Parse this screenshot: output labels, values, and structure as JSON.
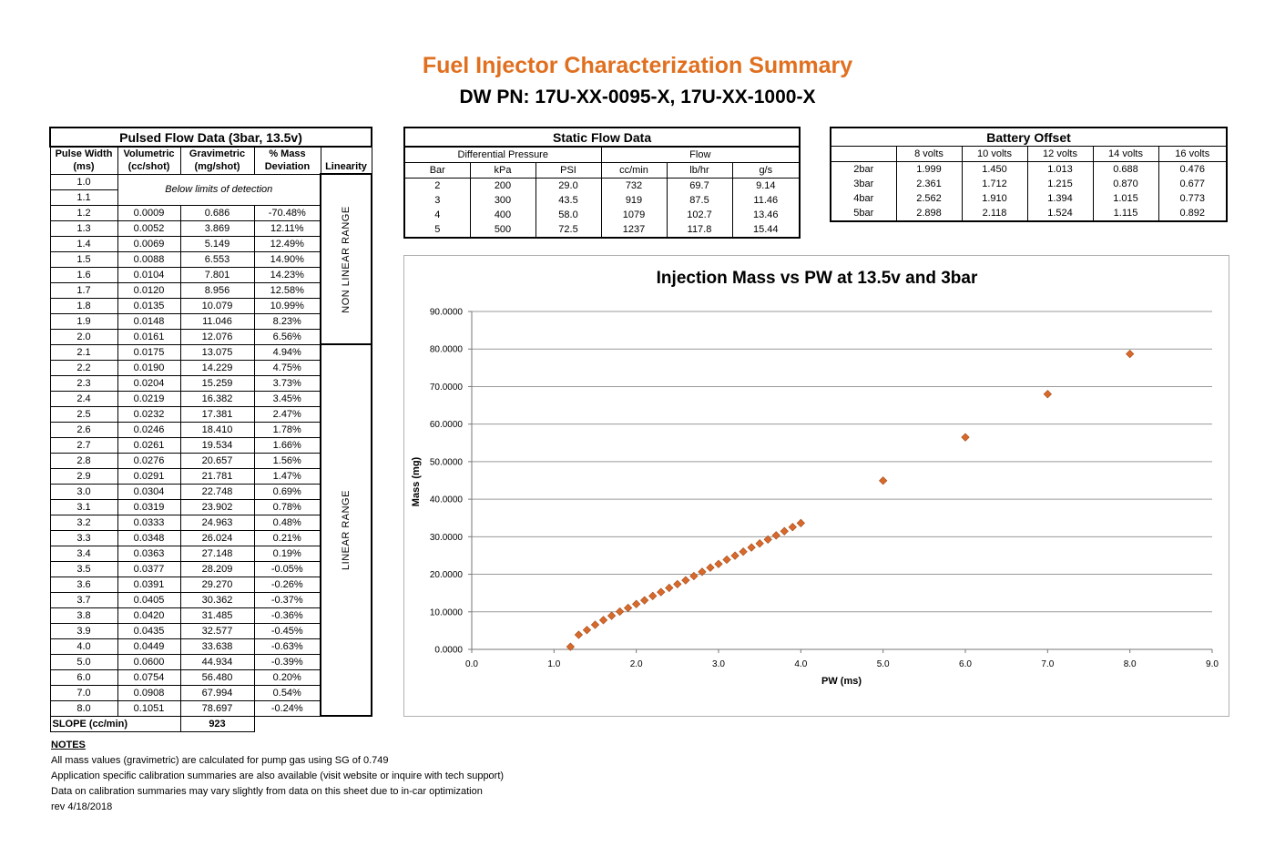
{
  "title": "Fuel Injector Characterization Summary",
  "subtitle": "DW PN: 17U-XX-0095-X, 17U-XX-1000-X",
  "pulsed": {
    "title": "Pulsed Flow Data (3bar, 13.5v)",
    "headers_top": [
      "Pulse Width",
      "Volumetric",
      "Gravimetric",
      "% Mass",
      ""
    ],
    "headers_bottom": [
      "(ms)",
      "(cc/shot)",
      "(mg/shot)",
      "Deviation",
      "Linearity"
    ],
    "below_limits": "Below limits of detection",
    "non_linear_label": "NON LINEAR RANGE",
    "linear_label": "LINEAR RANGE",
    "rows": [
      [
        "1.0",
        "",
        "",
        ""
      ],
      [
        "1.1",
        "",
        "",
        ""
      ],
      [
        "1.2",
        "0.0009",
        "0.686",
        "-70.48%"
      ],
      [
        "1.3",
        "0.0052",
        "3.869",
        "12.11%"
      ],
      [
        "1.4",
        "0.0069",
        "5.149",
        "12.49%"
      ],
      [
        "1.5",
        "0.0088",
        "6.553",
        "14.90%"
      ],
      [
        "1.6",
        "0.0104",
        "7.801",
        "14.23%"
      ],
      [
        "1.7",
        "0.0120",
        "8.956",
        "12.58%"
      ],
      [
        "1.8",
        "0.0135",
        "10.079",
        "10.99%"
      ],
      [
        "1.9",
        "0.0148",
        "11.046",
        "8.23%"
      ],
      [
        "2.0",
        "0.0161",
        "12.076",
        "6.56%"
      ],
      [
        "2.1",
        "0.0175",
        "13.075",
        "4.94%"
      ],
      [
        "2.2",
        "0.0190",
        "14.229",
        "4.75%"
      ],
      [
        "2.3",
        "0.0204",
        "15.259",
        "3.73%"
      ],
      [
        "2.4",
        "0.0219",
        "16.382",
        "3.45%"
      ],
      [
        "2.5",
        "0.0232",
        "17.381",
        "2.47%"
      ],
      [
        "2.6",
        "0.0246",
        "18.410",
        "1.78%"
      ],
      [
        "2.7",
        "0.0261",
        "19.534",
        "1.66%"
      ],
      [
        "2.8",
        "0.0276",
        "20.657",
        "1.56%"
      ],
      [
        "2.9",
        "0.0291",
        "21.781",
        "1.47%"
      ],
      [
        "3.0",
        "0.0304",
        "22.748",
        "0.69%"
      ],
      [
        "3.1",
        "0.0319",
        "23.902",
        "0.78%"
      ],
      [
        "3.2",
        "0.0333",
        "24.963",
        "0.48%"
      ],
      [
        "3.3",
        "0.0348",
        "26.024",
        "0.21%"
      ],
      [
        "3.4",
        "0.0363",
        "27.148",
        "0.19%"
      ],
      [
        "3.5",
        "0.0377",
        "28.209",
        "-0.05%"
      ],
      [
        "3.6",
        "0.0391",
        "29.270",
        "-0.26%"
      ],
      [
        "3.7",
        "0.0405",
        "30.362",
        "-0.37%"
      ],
      [
        "3.8",
        "0.0420",
        "31.485",
        "-0.36%"
      ],
      [
        "3.9",
        "0.0435",
        "32.577",
        "-0.45%"
      ],
      [
        "4.0",
        "0.0449",
        "33.638",
        "-0.63%"
      ],
      [
        "5.0",
        "0.0600",
        "44.934",
        "-0.39%"
      ],
      [
        "6.0",
        "0.0754",
        "56.480",
        "0.20%"
      ],
      [
        "7.0",
        "0.0908",
        "67.994",
        "0.54%"
      ],
      [
        "8.0",
        "0.1051",
        "78.697",
        "-0.24%"
      ]
    ],
    "slope_label": "SLOPE (cc/min)",
    "slope_value": "923"
  },
  "static": {
    "title": "Static Flow Data",
    "group_pressure": "Differential Pressure",
    "group_flow": "Flow",
    "headers": [
      "Bar",
      "kPa",
      "PSI",
      "cc/min",
      "lb/hr",
      "g/s"
    ],
    "rows": [
      [
        "2",
        "200",
        "29.0",
        "732",
        "69.7",
        "9.14"
      ],
      [
        "3",
        "300",
        "43.5",
        "919",
        "87.5",
        "11.46"
      ],
      [
        "4",
        "400",
        "58.0",
        "1079",
        "102.7",
        "13.46"
      ],
      [
        "5",
        "500",
        "72.5",
        "1237",
        "117.8",
        "15.44"
      ]
    ]
  },
  "battery": {
    "title": "Battery Offset",
    "headers": [
      "",
      "8 volts",
      "10 volts",
      "12 volts",
      "14 volts",
      "16 volts"
    ],
    "rows": [
      [
        "2bar",
        "1.999",
        "1.450",
        "1.013",
        "0.688",
        "0.476"
      ],
      [
        "3bar",
        "2.361",
        "1.712",
        "1.215",
        "0.870",
        "0.677"
      ],
      [
        "4bar",
        "2.562",
        "1.910",
        "1.394",
        "1.015",
        "0.773"
      ],
      [
        "5bar",
        "2.898",
        "2.118",
        "1.524",
        "1.115",
        "0.892"
      ]
    ]
  },
  "chart_data": {
    "type": "scatter",
    "title": "Injection Mass vs PW at 13.5v and 3bar",
    "xlabel": "PW (ms)",
    "ylabel": "Mass (mg)",
    "xlim": [
      0,
      9
    ],
    "ylim": [
      0,
      90
    ],
    "x_ticks": [
      "0.0",
      "1.0",
      "2.0",
      "3.0",
      "4.0",
      "5.0",
      "6.0",
      "7.0",
      "8.0",
      "9.0"
    ],
    "y_ticks": [
      "0.0000",
      "10.0000",
      "20.0000",
      "30.0000",
      "40.0000",
      "50.0000",
      "60.0000",
      "70.0000",
      "80.0000",
      "90.0000"
    ],
    "grid": "horizontal",
    "marker_color": "#d9692b",
    "x": [
      1.2,
      1.3,
      1.4,
      1.5,
      1.6,
      1.7,
      1.8,
      1.9,
      2.0,
      2.1,
      2.2,
      2.3,
      2.4,
      2.5,
      2.6,
      2.7,
      2.8,
      2.9,
      3.0,
      3.1,
      3.2,
      3.3,
      3.4,
      3.5,
      3.6,
      3.7,
      3.8,
      3.9,
      4.0,
      5.0,
      6.0,
      7.0,
      8.0
    ],
    "y": [
      0.686,
      3.869,
      5.149,
      6.553,
      7.801,
      8.956,
      10.079,
      11.046,
      12.076,
      13.075,
      14.229,
      15.259,
      16.382,
      17.381,
      18.41,
      19.534,
      20.657,
      21.781,
      22.748,
      23.902,
      24.963,
      26.024,
      27.148,
      28.209,
      29.27,
      30.362,
      31.485,
      32.577,
      33.638,
      44.934,
      56.48,
      67.994,
      78.697
    ]
  },
  "notes": {
    "heading": "NOTES",
    "lines": [
      "All mass values (gravimetric) are calculated for pump gas using SG of 0.749",
      "Application specific calibration summaries are also available (visit website or inquire with tech support)",
      "Data on calibration summaries may vary slightly from data on this sheet due to in-car optimization",
      "rev 4/18/2018"
    ]
  }
}
